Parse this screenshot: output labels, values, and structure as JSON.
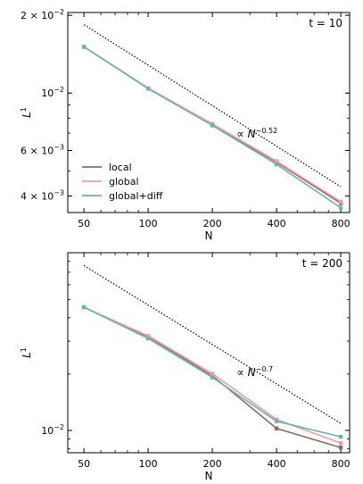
{
  "chart_data": [
    {
      "type": "line",
      "panel_label": "t = 10",
      "xlabel": "N",
      "ylabel": "L",
      "ylabel_superscript": "1",
      "xscale": "log",
      "yscale": "log",
      "x": [
        50,
        100,
        200,
        400,
        800
      ],
      "xticks": [
        "50",
        "100",
        "200",
        "400",
        "800"
      ],
      "xlim": [
        42,
        880
      ],
      "ylim": [
        0.00345,
        0.0205
      ],
      "yticks": [
        {
          "value": 0.02,
          "mantissa": "2 × 10",
          "exp": "−2"
        },
        {
          "value": 0.01,
          "mantissa": "10",
          "exp": "−2"
        },
        {
          "value": 0.006,
          "mantissa": "6 × 10",
          "exp": "−3"
        },
        {
          "value": 0.004,
          "mantissa": "4 × 10",
          "exp": "−3"
        }
      ],
      "series": [
        {
          "name": "local",
          "color": "#8c6d5c",
          "values": [
            0.0151,
            0.01045,
            0.00755,
            0.0054,
            0.00375
          ]
        },
        {
          "name": "global",
          "color": "#f29aa6",
          "values": [
            0.0151,
            0.01045,
            0.0076,
            0.00545,
            0.0038
          ]
        },
        {
          "name": "global+diff",
          "color": "#6ab5ad",
          "values": [
            0.0151,
            0.0104,
            0.0075,
            0.0053,
            0.0036
          ]
        }
      ],
      "reference_line": {
        "label_prefix": "∝ N",
        "exponent": "−0.52",
        "x": [
          50,
          800
        ],
        "y": [
          0.0184,
          0.00434
        ]
      },
      "legend_position": "lower-left"
    },
    {
      "type": "line",
      "panel_label": "t = 200",
      "xlabel": "N",
      "ylabel": "L",
      "ylabel_superscript": "1",
      "xscale": "log",
      "yscale": "log",
      "x": [
        50,
        100,
        200,
        400,
        800
      ],
      "xticks": [
        "50",
        "100",
        "200",
        "400",
        "800"
      ],
      "xlim": [
        42,
        880
      ],
      "ylim": [
        0.0076,
        0.089
      ],
      "yticks": [
        {
          "value": 0.01,
          "mantissa": "10",
          "exp": "−2"
        }
      ],
      "series": [
        {
          "name": "local",
          "color": "#8c6d5c",
          "values": [
            0.0455,
            0.0317,
            0.0196,
            0.01025,
            0.0081
          ]
        },
        {
          "name": "global",
          "color": "#f29aa6",
          "values": [
            0.0455,
            0.032,
            0.0201,
            0.01145,
            0.00855
          ]
        },
        {
          "name": "global+diff",
          "color": "#6ab5ad",
          "values": [
            0.0455,
            0.031,
            0.0192,
            0.0112,
            0.00925
          ]
        }
      ],
      "reference_line": {
        "label_prefix": "∝ N",
        "exponent": "−0.7",
        "x": [
          50,
          800
        ],
        "y": [
          0.076,
          0.0109
        ]
      }
    }
  ]
}
